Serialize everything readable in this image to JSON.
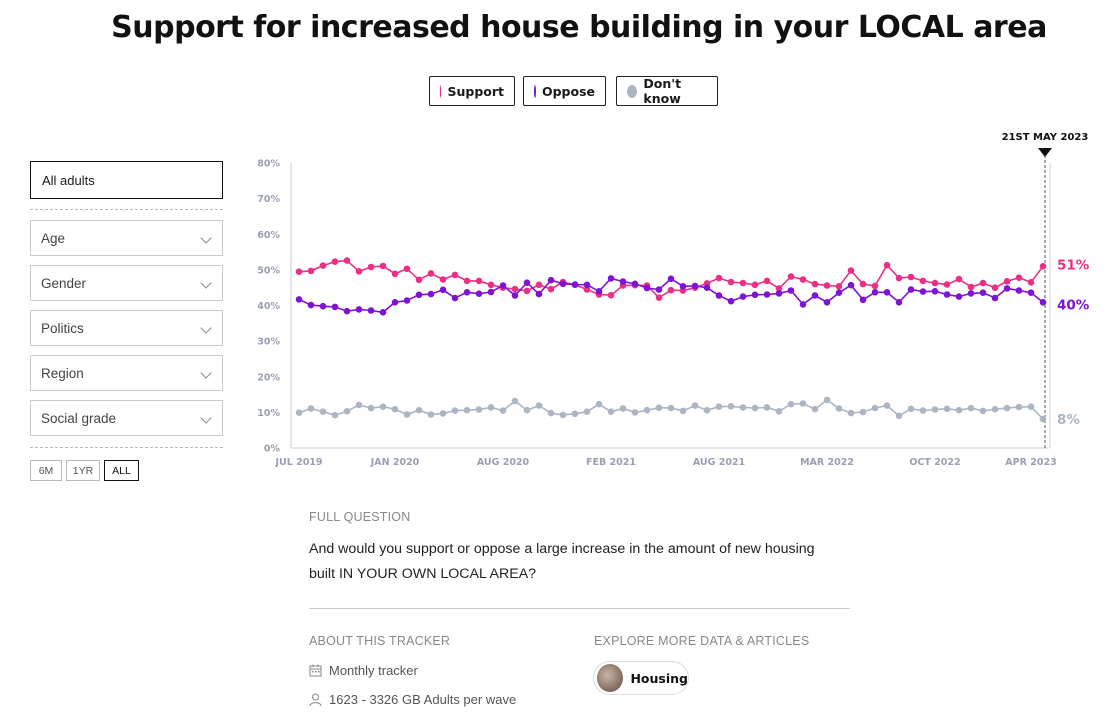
{
  "page": {
    "title": "Support for increased house building in your LOCAL area"
  },
  "legend": [
    {
      "label": "Support",
      "color": "#ec2f85"
    },
    {
      "label": "Oppose",
      "color": "#7e13d6"
    },
    {
      "label": "Don't know",
      "color": "#adb5c3"
    }
  ],
  "filters": {
    "selected": "All adults",
    "dropdowns": [
      "Age",
      "Gender",
      "Politics",
      "Region",
      "Social grade"
    ],
    "ranges": [
      "6M",
      "1YR",
      "ALL"
    ],
    "active_range": "ALL"
  },
  "marker": {
    "label": "21ST MAY 2023"
  },
  "chart_data": {
    "type": "line",
    "ylim": [
      0,
      80
    ],
    "y_ticks": [
      "0%",
      "10%",
      "20%",
      "30%",
      "40%",
      "50%",
      "60%",
      "70%",
      "80%"
    ],
    "x_ticks": [
      "JUL 2019",
      "JAN 2020",
      "AUG 2020",
      "FEB 2021",
      "AUG 2021",
      "MAR 2022",
      "OCT 2022",
      "APR 2023"
    ],
    "x_tick_index": [
      0,
      8,
      17,
      26,
      35,
      44,
      53,
      61
    ],
    "n_points": 63,
    "end_labels": [
      "51%",
      "40%",
      "8%"
    ],
    "series": [
      {
        "name": "Support",
        "color": "#ec2f85",
        "values": [
          49.5,
          49.7,
          51.2,
          52.3,
          52.6,
          49.6,
          50.8,
          51.1,
          48.9,
          50.3,
          47.2,
          49.0,
          47.3,
          48.6,
          46.9,
          46.9,
          45.8,
          45.0,
          44.6,
          44.1,
          45.8,
          44.6,
          46.6,
          45.8,
          44.5,
          43.1,
          42.9,
          45.6,
          45.7,
          45.6,
          42.2,
          44.3,
          44.2,
          45.0,
          46.2,
          47.7,
          46.6,
          46.3,
          45.8,
          46.9,
          44.8,
          48.1,
          47.3,
          46.0,
          45.6,
          45.4,
          49.8,
          46.0,
          45.5,
          51.3,
          47.7,
          48.0,
          46.9,
          46.3,
          45.9,
          47.4,
          45.2,
          46.3,
          45.0,
          46.8,
          47.8,
          46.5,
          51.0
        ]
      },
      {
        "name": "Oppose",
        "color": "#7e13d6",
        "values": [
          41.7,
          40.1,
          39.8,
          39.6,
          38.4,
          38.9,
          38.6,
          38.1,
          40.9,
          41.4,
          43.0,
          43.2,
          44.4,
          42.1,
          43.7,
          43.3,
          43.8,
          45.6,
          42.8,
          46.4,
          43.2,
          47.1,
          46.1,
          45.9,
          45.8,
          44.0,
          47.6,
          46.7,
          46.1,
          44.9,
          44.5,
          47.5,
          45.4,
          45.5,
          45.0,
          42.8,
          41.2,
          42.5,
          43.0,
          43.1,
          43.4,
          44.2,
          40.3,
          42.8,
          40.9,
          43.6,
          45.7,
          41.6,
          43.7,
          43.7,
          40.9,
          44.5,
          43.9,
          44.0,
          43.1,
          42.5,
          43.4,
          43.6,
          42.1,
          44.8,
          44.2,
          43.6,
          40.9
        ]
      },
      {
        "name": "Don't know",
        "color": "#adb5c3",
        "values": [
          9.9,
          11.1,
          10.2,
          9.2,
          10.3,
          12.1,
          11.2,
          11.6,
          10.9,
          9.4,
          10.6,
          9.4,
          9.7,
          10.5,
          10.6,
          10.8,
          11.4,
          10.5,
          13.2,
          10.6,
          11.9,
          9.8,
          9.3,
          9.6,
          10.2,
          12.3,
          10.2,
          11.1,
          10.0,
          10.6,
          11.3,
          11.2,
          10.4,
          11.9,
          10.6,
          11.6,
          11.7,
          11.4,
          11.2,
          11.4,
          10.3,
          12.3,
          12.5,
          10.9,
          13.5,
          11.1,
          9.8,
          10.1,
          11.2,
          11.9,
          9.0,
          11.0,
          10.5,
          10.8,
          11.0,
          10.6,
          11.2,
          10.4,
          10.9,
          11.2,
          11.5,
          11.6,
          8.1
        ]
      }
    ]
  },
  "info": {
    "full_question_label": "FULL QUESTION",
    "question": "And would you support or oppose a large increase in the amount of new housing built IN YOUR OWN LOCAL AREA?",
    "about_label": "ABOUT THIS TRACKER",
    "frequency": "Monthly tracker",
    "sample": "1623 - 3326 GB Adults per wave",
    "explore_label": "EXPLORE MORE DATA & ARTICLES",
    "topic": "Housing"
  }
}
